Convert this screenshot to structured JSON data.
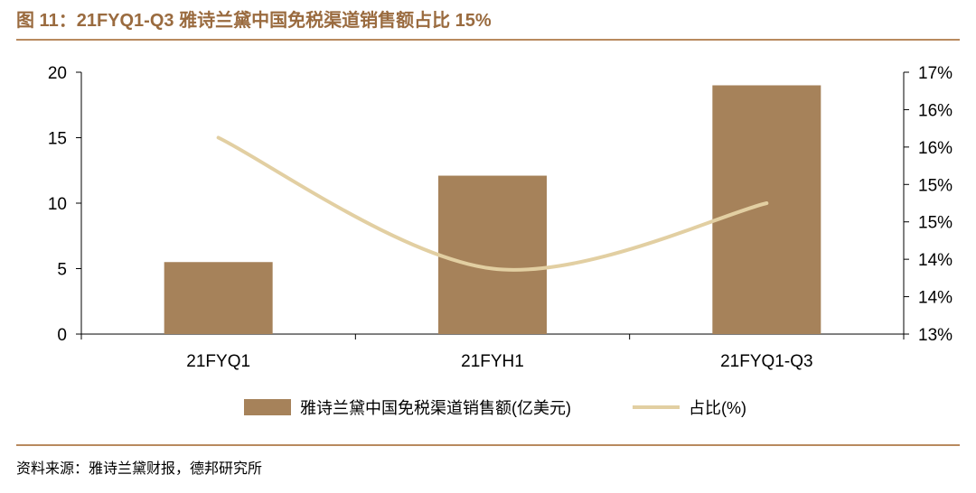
{
  "title": "图 11：21FYQ1-Q3 雅诗兰黛中国免税渠道销售额占比 15%",
  "source": "资料来源：雅诗兰黛财报，德邦研究所",
  "colors": {
    "bar": "#A6825A",
    "line": "#E2CFA2",
    "title": "#9A6B3F",
    "rule": "#B88A5E"
  },
  "chart_data": {
    "type": "bar",
    "categories": [
      "21FYQ1",
      "21FYH1",
      "21FYQ1-Q3"
    ],
    "series": [
      {
        "name": "雅诗兰黛中国免税渠道销售额(亿美元)",
        "type": "bar",
        "axis": "left",
        "values": [
          5.5,
          12.1,
          19.0
        ]
      },
      {
        "name": "占比(%)",
        "type": "line",
        "axis": "right",
        "values": [
          16.0,
          14.0,
          15.0
        ]
      }
    ],
    "left_axis": {
      "ylim": [
        0,
        20
      ],
      "ticks": [
        "0",
        "5",
        "10",
        "15",
        "20"
      ]
    },
    "right_axis": {
      "ylim": [
        13,
        17
      ],
      "ticks": [
        "13%",
        "14%",
        "14%",
        "15%",
        "15%",
        "16%",
        "16%",
        "17%"
      ]
    },
    "grid": false,
    "legend": "bottom"
  }
}
